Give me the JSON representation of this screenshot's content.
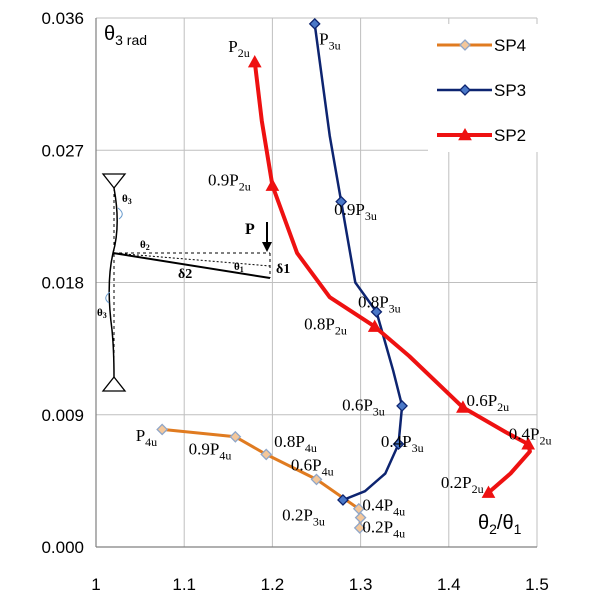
{
  "chart_data": {
    "type": "line",
    "xlim": [
      1,
      1.5
    ],
    "ylim": [
      0,
      0.036
    ],
    "x_ticks": [
      "1",
      "1.1",
      "1.2",
      "1.3",
      "1.4",
      "1.5"
    ],
    "y_ticks": [
      "0.000",
      "0.009",
      "0.018",
      "0.027",
      "0.036"
    ],
    "grid": true,
    "legend_position": "top-right",
    "ylabel": "θ3 rad",
    "xlabel": "θ2/θ1",
    "series": [
      {
        "name": "SP4",
        "color": "#e07b20",
        "marker": "diamond",
        "x": [
          1.075,
          1.158,
          1.193,
          1.25,
          1.298,
          1.3,
          1.299
        ],
        "y": [
          0.008,
          0.0075,
          0.0063,
          0.0046,
          0.0026,
          0.002,
          0.0013
        ]
      },
      {
        "name": "SP3",
        "color": "#0d2470",
        "marker": "diamond",
        "x": [
          1.248,
          1.265,
          1.278,
          1.294,
          1.318,
          1.337,
          1.347,
          1.343,
          1.328,
          1.305,
          1.28
        ],
        "y": [
          0.0356,
          0.028,
          0.0235,
          0.018,
          0.016,
          0.012,
          0.0096,
          0.007,
          0.005,
          0.0038,
          0.0032
        ]
      },
      {
        "name": "SP2",
        "color": "#ee1111",
        "marker": "triangle",
        "x": [
          1.18,
          1.188,
          1.2,
          1.228,
          1.265,
          1.316,
          1.355,
          1.416,
          1.465,
          1.49,
          1.492,
          1.47,
          1.445
        ],
        "y": [
          0.033,
          0.029,
          0.0246,
          0.02,
          0.017,
          0.015,
          0.013,
          0.0095,
          0.0078,
          0.007,
          0.0065,
          0.005,
          0.0037
        ]
      }
    ],
    "markers": {
      "SP4": [
        0,
        1,
        2,
        3,
        4,
        5,
        6
      ],
      "SP3": [
        0,
        2,
        4,
        6,
        7,
        10
      ],
      "SP2": [
        0,
        2,
        5,
        7,
        9,
        12
      ]
    },
    "annotations": [
      {
        "text": "P",
        "sub": "4u",
        "at": [
          1.045,
          0.0072
        ]
      },
      {
        "text": "0.9P",
        "sub": "4u",
        "at": [
          1.105,
          0.0063
        ]
      },
      {
        "text": "0.8P",
        "sub": "4u",
        "at": [
          1.202,
          0.0068
        ]
      },
      {
        "text": "0.6P",
        "sub": "4u",
        "at": [
          1.221,
          0.0052
        ]
      },
      {
        "text": "0.4P",
        "sub": "4u",
        "at": [
          1.302,
          0.0025
        ]
      },
      {
        "text": "0.2P",
        "sub": "3u",
        "at": [
          1.211,
          0.0018
        ]
      },
      {
        "text": "0.2P",
        "sub": "4u",
        "at": [
          1.302,
          0.001
        ]
      },
      {
        "text": "P",
        "sub": "3u",
        "at": [
          1.253,
          0.0342
        ]
      },
      {
        "text": "0.9P",
        "sub": "3u",
        "at": [
          1.27,
          0.0226
        ]
      },
      {
        "text": "0.8P",
        "sub": "3u",
        "at": [
          1.297,
          0.0163
        ]
      },
      {
        "text": "0.6P",
        "sub": "3u",
        "at": [
          1.279,
          0.0093
        ]
      },
      {
        "text": "0.4P",
        "sub": "3u",
        "at": [
          1.323,
          0.0068
        ]
      },
      {
        "text": "P",
        "sub": "2u",
        "at": [
          1.15,
          0.0337
        ]
      },
      {
        "text": "0.9P",
        "sub": "2u",
        "at": [
          1.127,
          0.0246
        ]
      },
      {
        "text": "0.8P",
        "sub": "2u",
        "at": [
          1.236,
          0.0148
        ]
      },
      {
        "text": "0.6P",
        "sub": "2u",
        "at": [
          1.42,
          0.0096
        ]
      },
      {
        "text": "0.4P",
        "sub": "2u",
        "at": [
          1.468,
          0.0073
        ]
      },
      {
        "text": "0.2P",
        "sub": "2u",
        "at": [
          1.391,
          0.004
        ]
      }
    ],
    "inset": {
      "load_label": "P",
      "theta1": "θ1",
      "theta2": "θ2",
      "theta3_top": "θ3",
      "theta3_bottom": "θ3",
      "delta1": "δ1",
      "delta2": "δ2"
    }
  }
}
